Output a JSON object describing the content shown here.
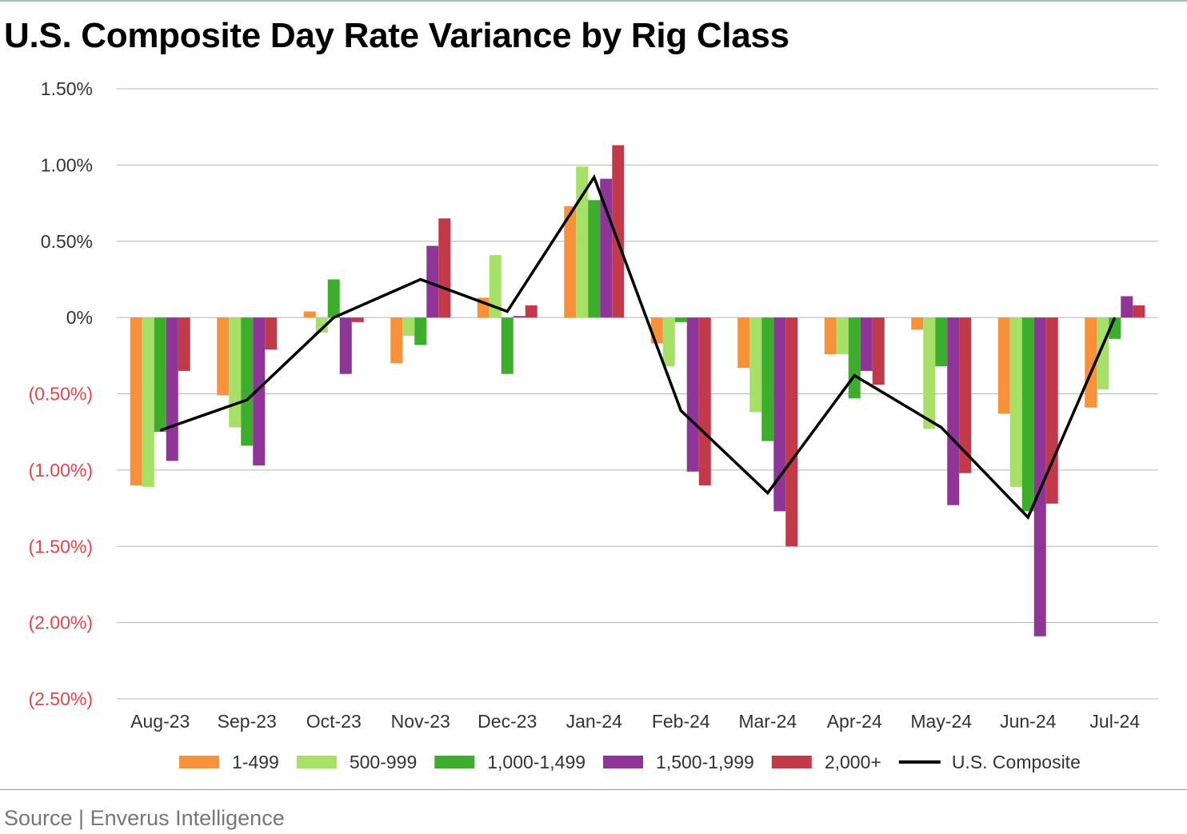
{
  "chart_data": {
    "type": "bar",
    "title": "U.S. Composite Day Rate Variance by Rig Class",
    "categories": [
      "Aug-23",
      "Sep-23",
      "Oct-23",
      "Nov-23",
      "Dec-23",
      "Jan-24",
      "Feb-24",
      "Mar-24",
      "Apr-24",
      "May-24",
      "Jun-24",
      "Jul-24"
    ],
    "ylim": [
      -2.5,
      1.5
    ],
    "y_unit": "%",
    "yticks": [
      {
        "value": 1.5,
        "label": "1.50%"
      },
      {
        "value": 1.0,
        "label": "1.00%"
      },
      {
        "value": 0.5,
        "label": "0.50%"
      },
      {
        "value": 0,
        "label": "0%"
      },
      {
        "value": -0.5,
        "label": "(0.50%)"
      },
      {
        "value": -1.0,
        "label": "(1.00%)"
      },
      {
        "value": -1.5,
        "label": "(1.50%)"
      },
      {
        "value": -2.0,
        "label": "(2.00%)"
      },
      {
        "value": -2.5,
        "label": "(2.50%)"
      }
    ],
    "grid": true,
    "legend_position": "bottom",
    "negative_label_color": "#e8424a",
    "series": [
      {
        "name": "1-499",
        "type": "bar",
        "color": "#f7923a",
        "values": [
          -1.1,
          -0.51,
          0.04,
          -0.3,
          0.13,
          0.73,
          -0.17,
          -0.33,
          -0.24,
          -0.08,
          -0.63,
          -0.59
        ]
      },
      {
        "name": "500-999",
        "type": "bar",
        "color": "#a6e067",
        "values": [
          -1.11,
          -0.72,
          -0.1,
          -0.12,
          0.41,
          0.99,
          -0.32,
          -0.62,
          -0.24,
          -0.73,
          -1.11,
          -0.47
        ]
      },
      {
        "name": "1,000-1,499",
        "type": "bar",
        "color": "#3cae2c",
        "values": [
          -0.75,
          -0.84,
          0.25,
          -0.18,
          -0.37,
          0.77,
          -0.03,
          -0.81,
          -0.53,
          -0.32,
          -1.27,
          -0.14
        ]
      },
      {
        "name": "1,500-1,999",
        "type": "bar",
        "color": "#8f3597",
        "values": [
          -0.94,
          -0.97,
          -0.37,
          0.47,
          0.01,
          0.91,
          -1.01,
          -1.27,
          -0.35,
          -1.23,
          -2.09,
          0.14
        ]
      },
      {
        "name": "2,000+",
        "type": "bar",
        "color": "#c23a4a",
        "values": [
          -0.35,
          -0.21,
          -0.03,
          0.65,
          0.08,
          1.13,
          -1.1,
          -1.5,
          -0.44,
          -1.02,
          -1.22,
          0.08
        ]
      },
      {
        "name": "U.S. Composite",
        "type": "line",
        "color": "#000000",
        "values": [
          -0.74,
          -0.54,
          0.0,
          0.25,
          0.04,
          0.92,
          -0.61,
          -1.15,
          -0.38,
          -0.72,
          -1.31,
          0.0
        ]
      }
    ]
  },
  "footer": {
    "source": "Source | Enverus Intelligence"
  }
}
